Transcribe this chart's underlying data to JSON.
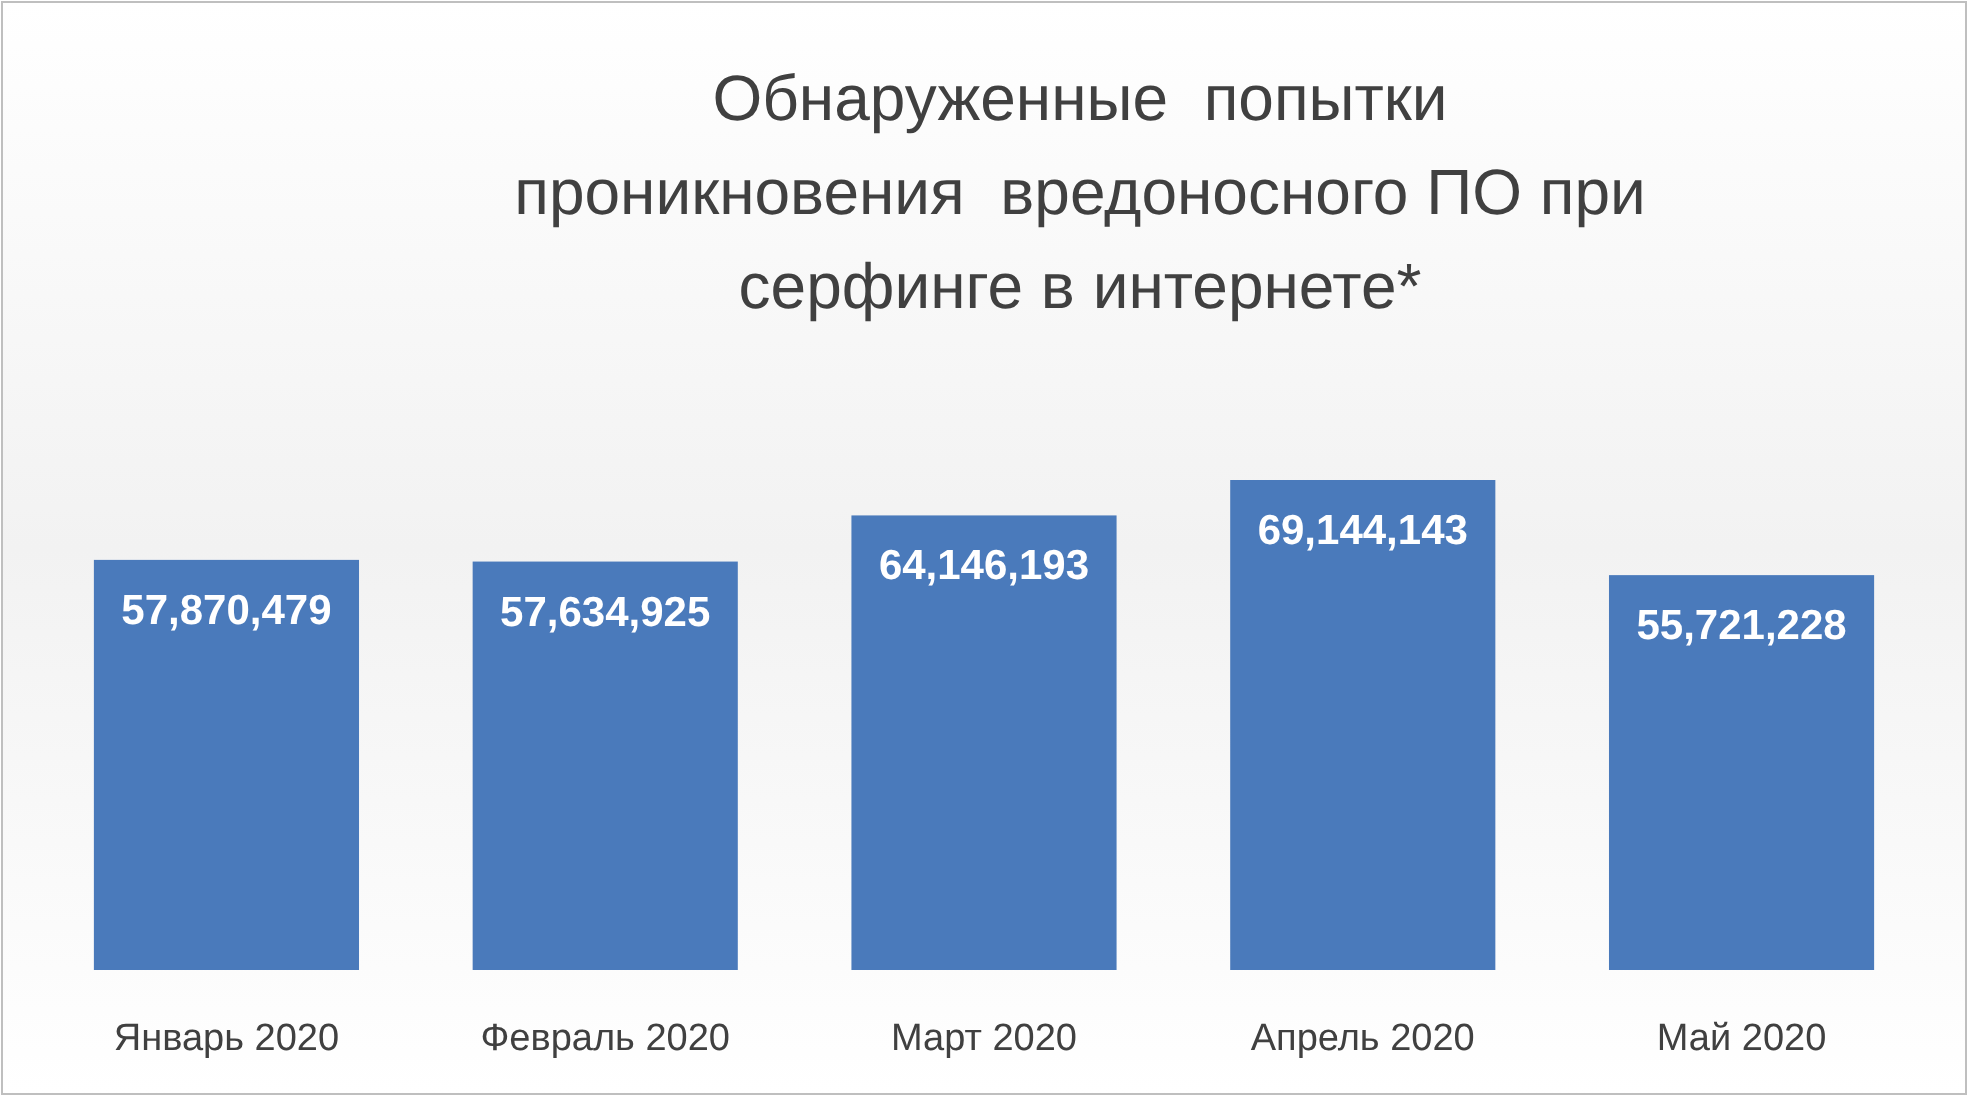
{
  "chart_data": {
    "type": "bar",
    "title": "Обнаруженные  попытки\nпроникновения  вредоносного ПО при\nсерфинге в интернете*",
    "categories": [
      "Январь 2020",
      "Февраль 2020",
      "Март 2020",
      "Апрель 2020",
      "Май 2020"
    ],
    "values": [
      57870479,
      57634925,
      64146193,
      69144143,
      55721228
    ],
    "value_labels": [
      "57,870,479",
      "57,634,925",
      "64,146,193",
      "69,144,143",
      "55,721,228"
    ],
    "color": "#4a7abb"
  }
}
